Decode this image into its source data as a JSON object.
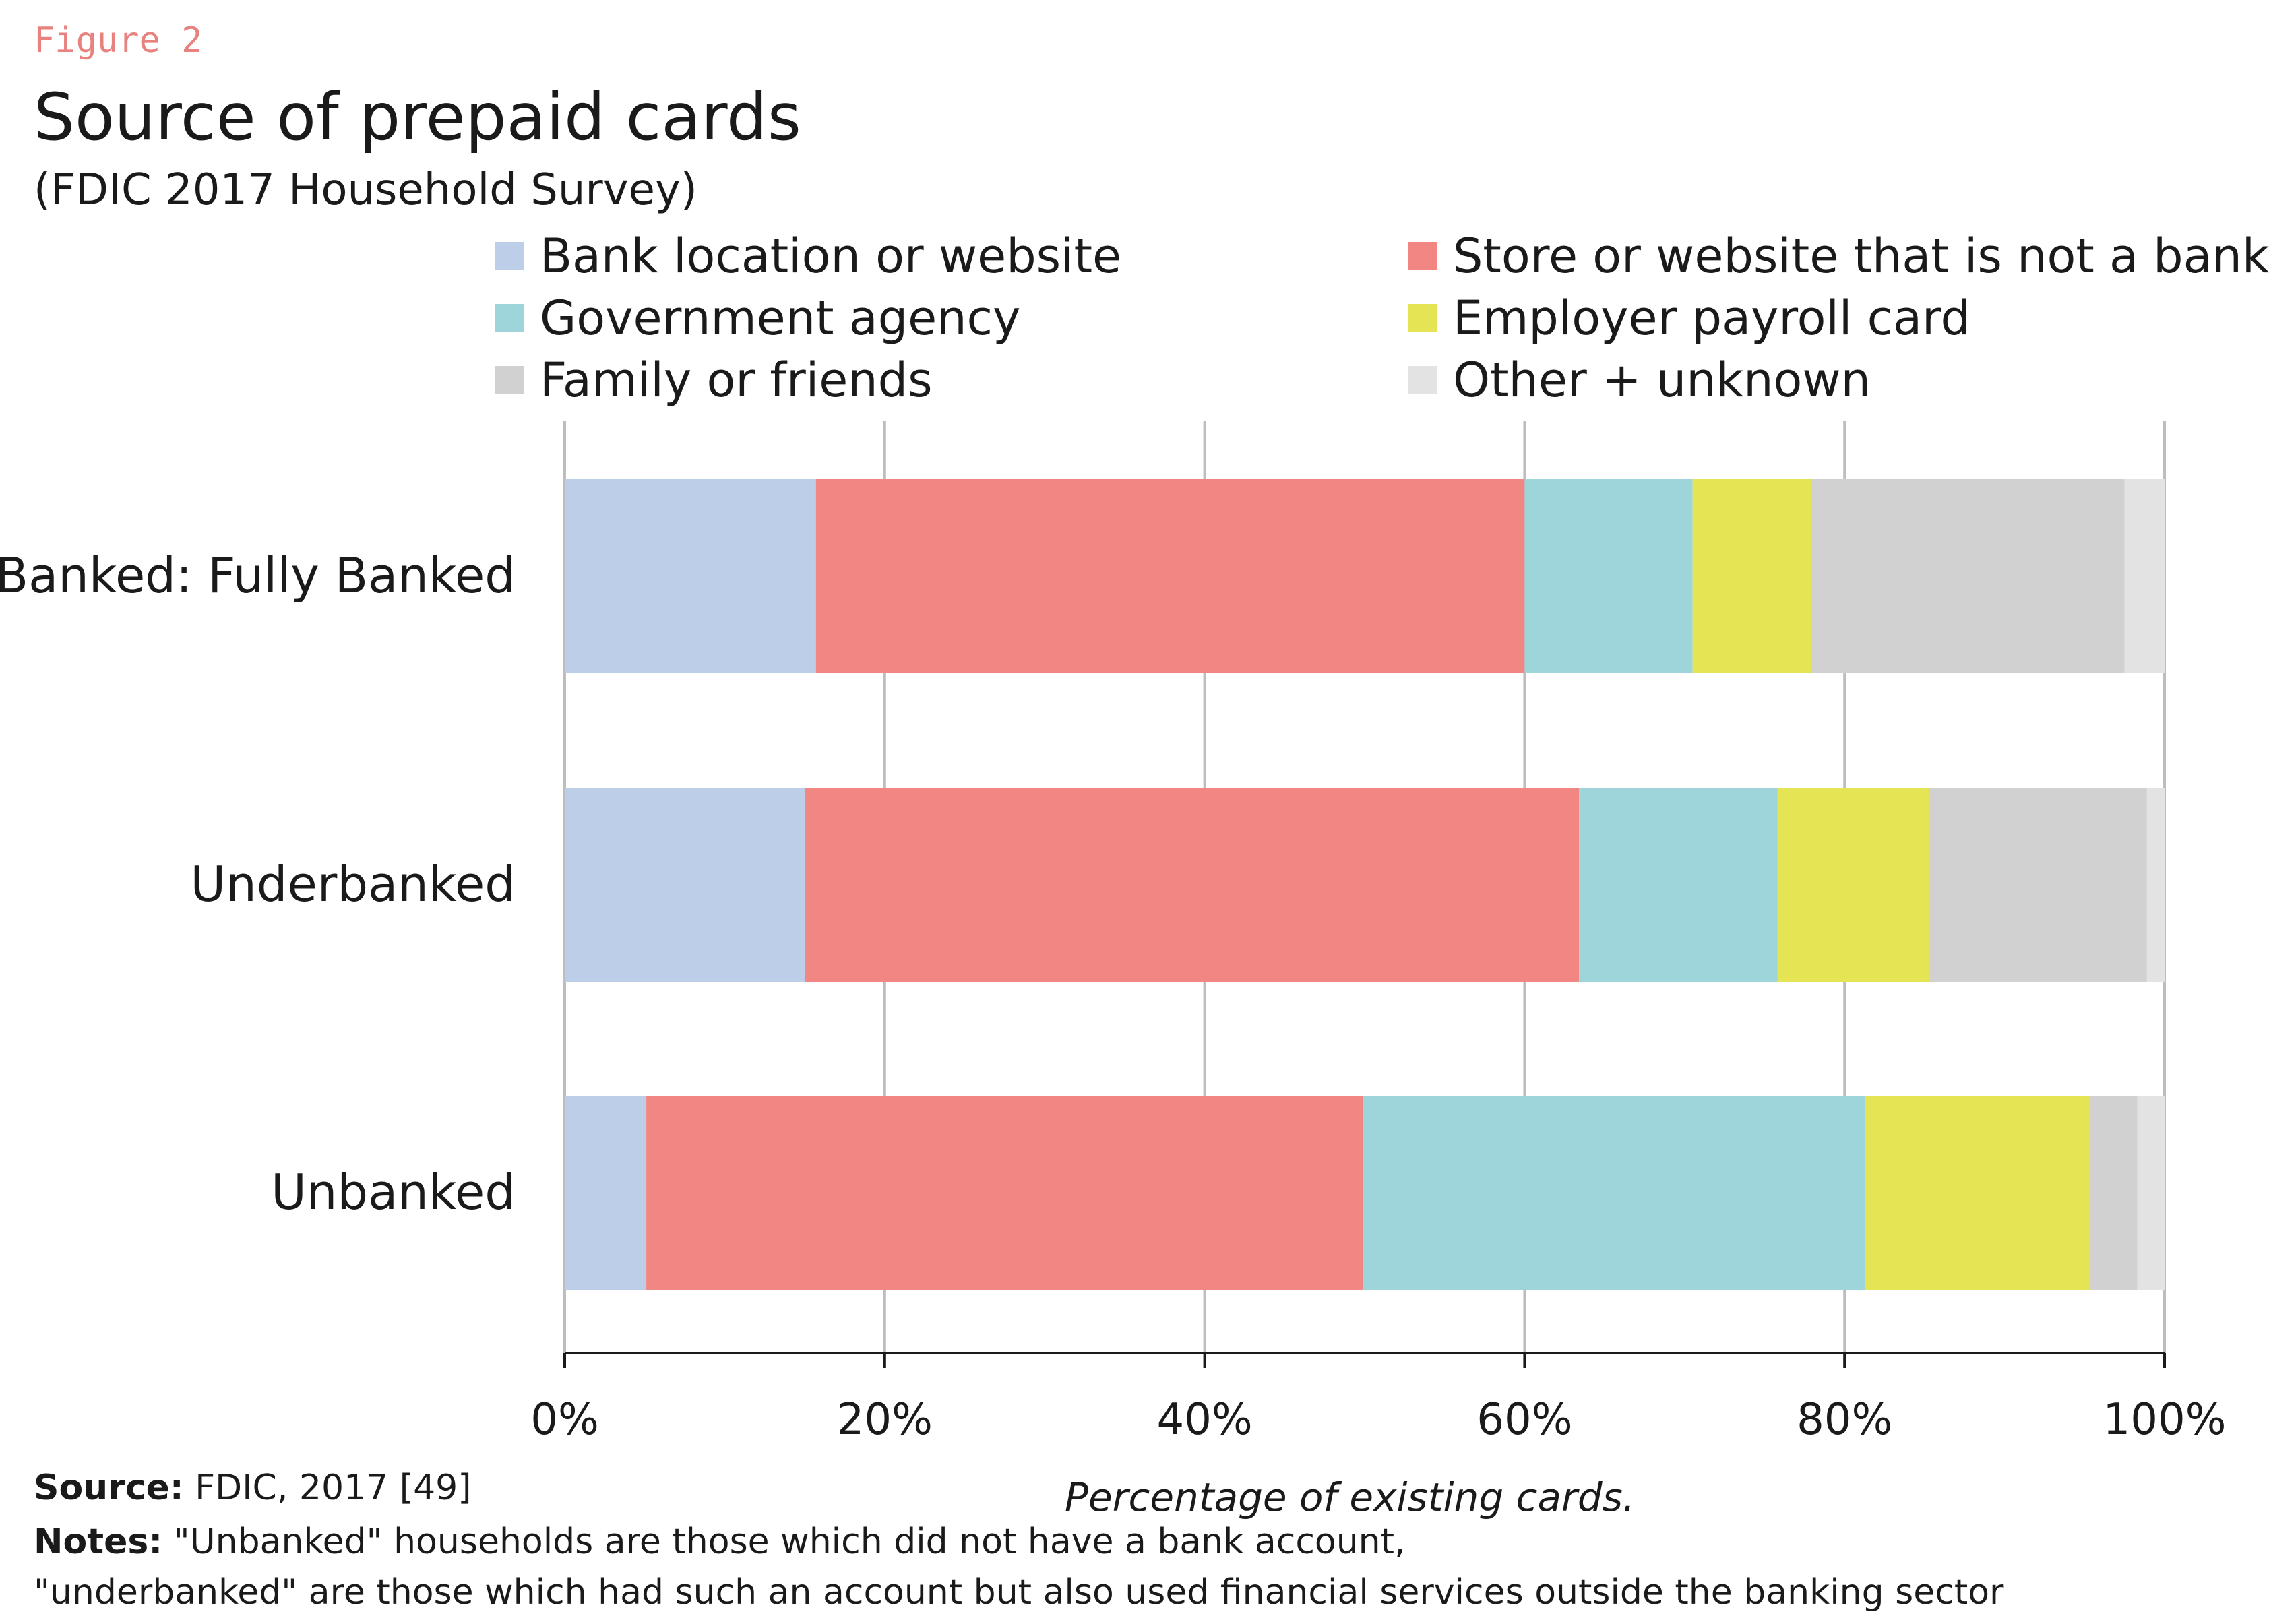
{
  "figure_label": "Figure 2",
  "source_label": "Source:",
  "source_text": "FDIC, 2017 [49]",
  "notes_label": "Notes:",
  "notes_line1": "\"Unbanked\" households are those which  did not have a bank account,",
  "notes_line2": "\"underbanked\" are those which had such an account but also used  financial services outside the banking sector",
  "chart_data": {
    "type": "bar",
    "orientation": "horizontal",
    "stacked": true,
    "title": "Source of prepaid cards",
    "subtitle": "(FDIC 2017 Household Survey)",
    "xlabel": "Percentage of existing cards.",
    "ylabel": "",
    "xlim": [
      0,
      100
    ],
    "xticks": [
      0,
      20,
      40,
      60,
      80,
      100
    ],
    "xtick_labels": [
      "0%",
      "20%",
      "40%",
      "60%",
      "80%",
      "100%"
    ],
    "grid": "vertical",
    "legend_position": "top",
    "categories": [
      "Banked: Fully Banked",
      "Underbanked",
      "Unbanked"
    ],
    "series": [
      {
        "name": "Bank location or website",
        "color": "#bdcee8",
        "values": [
          15.7,
          15.0,
          5.1
        ]
      },
      {
        "name": "Store or website that is not a bank",
        "color": "#f28682",
        "values": [
          44.3,
          48.4,
          44.8
        ]
      },
      {
        "name": "Government agency",
        "color": "#9dd5da",
        "values": [
          10.5,
          12.4,
          31.4
        ]
      },
      {
        "name": "Employer payroll card",
        "color": "#e4e454",
        "values": [
          7.4,
          9.5,
          14.0
        ]
      },
      {
        "name": "Family or friends",
        "color": "#d0d1d0",
        "values": [
          19.6,
          13.6,
          3.0
        ]
      },
      {
        "name": "Other + unknown",
        "color": "#e3e3e3",
        "values": [
          2.5,
          1.1,
          1.7
        ]
      }
    ]
  }
}
